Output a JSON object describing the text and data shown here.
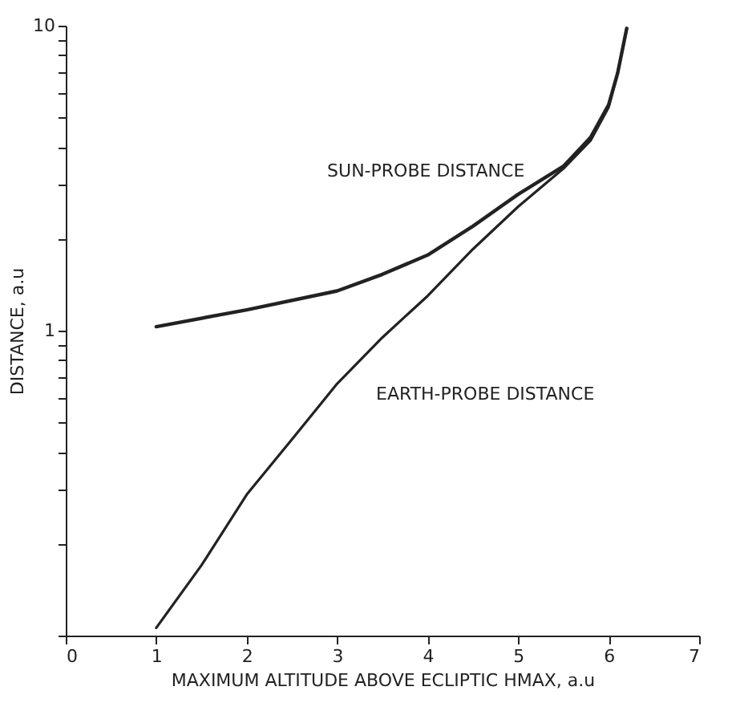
{
  "chart_data": {
    "type": "line",
    "xlabel": "MAXIMUM ALTITUDE ABOVE ECLIPTIC  HMAX, a.u",
    "ylabel": "DISTANCE, a.u",
    "log": "y",
    "grid": false,
    "marker": "none",
    "line_style": "solid",
    "xlim": [
      0,
      7
    ],
    "xticks": [
      0,
      1,
      2,
      3,
      4,
      5,
      6,
      7
    ],
    "ylim": [
      0.1,
      10
    ],
    "yticks": [
      {
        "value": 0.1,
        "label": null
      },
      {
        "value": 0.2,
        "label": null
      },
      {
        "value": 0.3,
        "label": null
      },
      {
        "value": 0.4,
        "label": null
      },
      {
        "value": 0.5,
        "label": null
      },
      {
        "value": 0.6,
        "label": null
      },
      {
        "value": 0.7,
        "label": null
      },
      {
        "value": 0.8,
        "label": null
      },
      {
        "value": 0.9,
        "label": null
      },
      1,
      {
        "value": 2,
        "label": null
      },
      {
        "value": 3,
        "label": null
      },
      {
        "value": 4,
        "label": null
      },
      {
        "value": 5,
        "label": null
      },
      {
        "value": 6,
        "label": null
      },
      {
        "value": 7,
        "label": null
      },
      {
        "value": 8,
        "label": null
      },
      {
        "value": 9,
        "label": null
      },
      10
    ],
    "series": [
      {
        "name": "SUN-PROBE DISTANCE",
        "color": "#222222",
        "x": [
          1,
          2,
          3,
          3.5,
          4,
          4.5,
          5,
          5.5,
          5.8,
          6,
          6.1,
          6.2
        ],
        "values": [
          1.03,
          1.17,
          1.35,
          1.53,
          1.77,
          2.2,
          2.8,
          3.46,
          4.3,
          5.5,
          7.0,
          9.8
        ]
      },
      {
        "name": "EARTH-PROBE DISTANCE",
        "color": "#222222",
        "x": [
          1,
          1.5,
          2,
          2.5,
          3,
          3.5,
          4,
          4.5,
          5,
          5.5,
          5.8,
          6,
          6.1,
          6.2
        ],
        "values": [
          0.106,
          0.17,
          0.29,
          0.44,
          0.67,
          0.95,
          1.3,
          1.85,
          2.55,
          3.4,
          4.2,
          5.4,
          7.0,
          9.8
        ]
      }
    ]
  }
}
